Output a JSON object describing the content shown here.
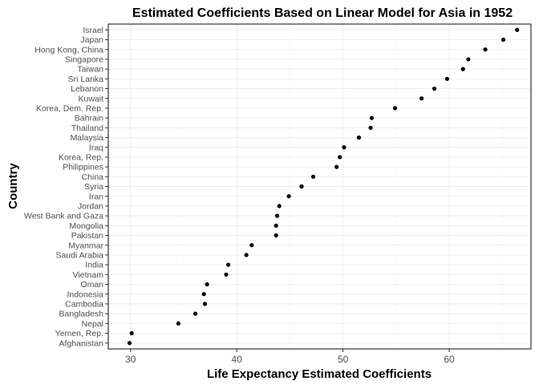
{
  "chart_data": {
    "type": "scatter",
    "title": "Estimated Coefficients Based on Linear Model for Asia in 1952",
    "xlabel": "Life Expectancy Estimated Coefficients",
    "ylabel": "Country",
    "xlim": [
      27.9,
      67.7
    ],
    "xticks": [
      30,
      40,
      50,
      60
    ],
    "grid": true,
    "points": [
      {
        "country": "Afghanistan",
        "value": 29.9
      },
      {
        "country": "Yemen, Rep.",
        "value": 30.1
      },
      {
        "country": "Nepal",
        "value": 34.5
      },
      {
        "country": "Bangladesh",
        "value": 36.1
      },
      {
        "country": "Cambodia",
        "value": 37.0
      },
      {
        "country": "Indonesia",
        "value": 36.9
      },
      {
        "country": "Oman",
        "value": 37.2
      },
      {
        "country": "Vietnam",
        "value": 39.0
      },
      {
        "country": "India",
        "value": 39.2
      },
      {
        "country": "Saudi Arabia",
        "value": 40.9
      },
      {
        "country": "Myanmar",
        "value": 41.4
      },
      {
        "country": "Pakistan",
        "value": 43.7
      },
      {
        "country": "Mongolia",
        "value": 43.7
      },
      {
        "country": "West Bank and Gaza",
        "value": 43.8
      },
      {
        "country": "Jordan",
        "value": 44.0
      },
      {
        "country": "Iran",
        "value": 44.9
      },
      {
        "country": "Syria",
        "value": 46.1
      },
      {
        "country": "China",
        "value": 47.2
      },
      {
        "country": "Philippines",
        "value": 49.4
      },
      {
        "country": "Korea, Rep.",
        "value": 49.7
      },
      {
        "country": "Iraq",
        "value": 50.1
      },
      {
        "country": "Malaysia",
        "value": 51.5
      },
      {
        "country": "Thailand",
        "value": 52.6
      },
      {
        "country": "Bahrain",
        "value": 52.7
      },
      {
        "country": "Korea, Dem. Rep.",
        "value": 54.9
      },
      {
        "country": "Kuwait",
        "value": 57.4
      },
      {
        "country": "Lebanon",
        "value": 58.6
      },
      {
        "country": "Sri Lanka",
        "value": 59.8
      },
      {
        "country": "Taiwan",
        "value": 61.3
      },
      {
        "country": "Singapore",
        "value": 61.8
      },
      {
        "country": "Hong Kong, China",
        "value": 63.4
      },
      {
        "country": "Japan",
        "value": 65.1
      },
      {
        "country": "Israel",
        "value": 66.4
      }
    ]
  }
}
